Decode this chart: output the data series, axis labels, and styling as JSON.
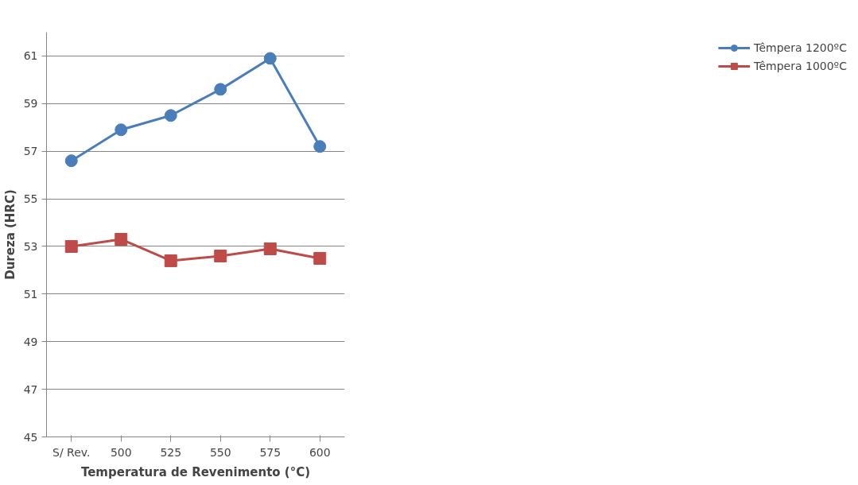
{
  "chart_data": {
    "type": "line",
    "xlabel": "Temperatura de Revenimento (°C)",
    "ylabel": "Dureza (HRC)",
    "categories": [
      "S/ Rev.",
      "500",
      "525",
      "550",
      "575",
      "600"
    ],
    "series": [
      {
        "name": "Têmpera 1200ºC",
        "color": "#4a7ebb",
        "marker": "circle",
        "values": [
          56.6,
          57.9,
          58.5,
          59.6,
          60.9,
          57.2
        ]
      },
      {
        "name": "Têmpera 1000ºC",
        "color": "#be4b48",
        "marker": "square",
        "values": [
          53.0,
          53.3,
          52.4,
          52.6,
          52.9,
          52.5
        ]
      }
    ],
    "ylim": [
      45,
      62
    ],
    "yticks": [
      45,
      47,
      49,
      51,
      53,
      55,
      57,
      59,
      61
    ],
    "grid": "y",
    "legend": "right",
    "line_style": "solid"
  }
}
